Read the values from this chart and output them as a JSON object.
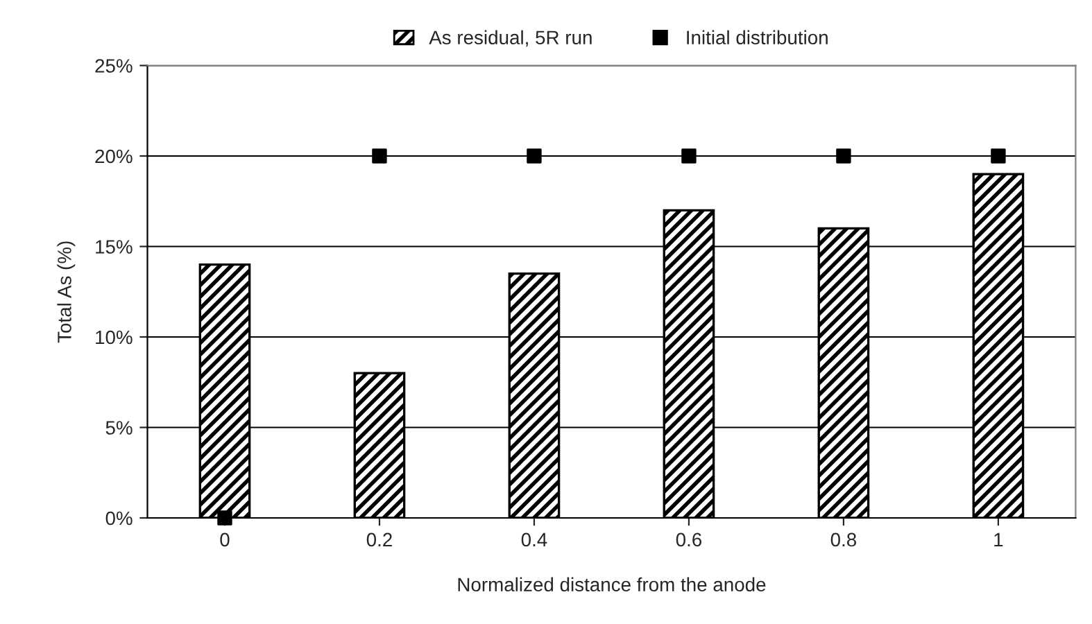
{
  "chart_data": {
    "type": "bar",
    "xlabel": "Normalized distance from the anode",
    "ylabel": "Total As (%)",
    "categories": [
      "0",
      "0.2",
      "0.4",
      "0.6",
      "0.8",
      "1"
    ],
    "series": [
      {
        "name": "As residual, 5R run",
        "color": "#000000",
        "values": [
          14,
          8,
          13.5,
          17,
          16,
          19
        ]
      },
      {
        "name": "Initial distribution",
        "type": "scatter",
        "color": "#000000",
        "x": [
          "0",
          "0.2",
          "0.4",
          "0.6",
          "0.8",
          "1"
        ],
        "values": [
          0,
          20,
          20,
          20,
          20,
          20
        ]
      }
    ],
    "ylim": [
      0,
      25
    ],
    "yticks": [
      {
        "value": 0,
        "label": "0%"
      },
      {
        "value": 5,
        "label": "5%"
      },
      {
        "value": 10,
        "label": "10%"
      },
      {
        "value": 15,
        "label": "15%"
      },
      {
        "value": 20,
        "label": "20%"
      },
      {
        "value": 25,
        "label": "25%"
      }
    ],
    "grid": "y",
    "legend": "top",
    "marker": "square"
  }
}
